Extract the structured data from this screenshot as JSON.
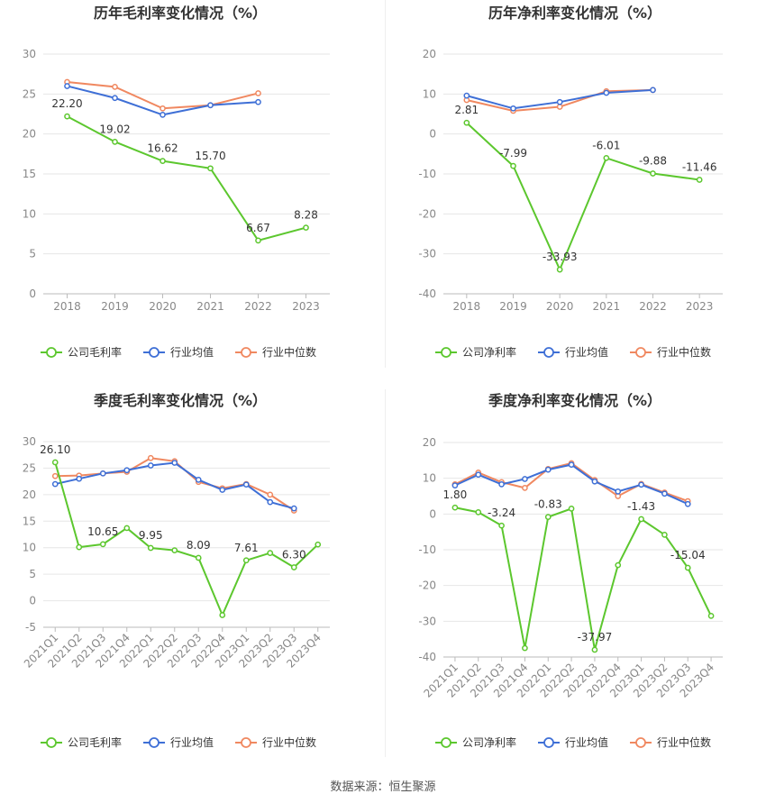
{
  "source_text": "数据来源：恒生聚源",
  "colors": {
    "company": "#5cc72e",
    "avg": "#3e6fd6",
    "median": "#f08860",
    "grid": "#e6e6e6",
    "axis": "#999999",
    "title": "#333333",
    "tick": "#888888"
  },
  "chart_data": [
    {
      "type": "line",
      "title": "历年毛利率变化情况（%）",
      "categories": [
        "2018",
        "2019",
        "2020",
        "2021",
        "2022",
        "2023"
      ],
      "ylim": [
        0,
        30
      ],
      "yticks": [
        0,
        5,
        10,
        15,
        20,
        25,
        30
      ],
      "grid": true,
      "legend_position": "bottom",
      "series": [
        {
          "name": "公司毛利率",
          "key": "company",
          "values": [
            22.2,
            19.02,
            16.62,
            15.7,
            6.67,
            8.28
          ],
          "labels": [
            "22.20",
            "19.02",
            "16.62",
            "15.70",
            "6.67",
            "8.28"
          ]
        },
        {
          "name": "行业均值",
          "key": "avg",
          "values": [
            26.0,
            24.5,
            22.4,
            23.6,
            24.0,
            null
          ]
        },
        {
          "name": "行业中位数",
          "key": "median",
          "values": [
            26.5,
            25.9,
            23.2,
            23.6,
            25.1,
            null
          ]
        }
      ]
    },
    {
      "type": "line",
      "title": "历年净利率变化情况（%）",
      "categories": [
        "2018",
        "2019",
        "2020",
        "2021",
        "2022",
        "2023"
      ],
      "ylim": [
        -40,
        20
      ],
      "yticks": [
        -40,
        -30,
        -20,
        -10,
        0,
        10,
        20
      ],
      "grid": true,
      "legend_position": "bottom",
      "series": [
        {
          "name": "公司净利率",
          "key": "company",
          "values": [
            2.81,
            -7.99,
            -33.93,
            -6.01,
            -9.88,
            -11.46
          ],
          "labels": [
            "2.81",
            "-7.99",
            "-33.93",
            "-6.01",
            "-9.88",
            "-11.46"
          ]
        },
        {
          "name": "行业均值",
          "key": "avg",
          "values": [
            9.6,
            6.4,
            8.0,
            10.3,
            11.0,
            null
          ]
        },
        {
          "name": "行业中位数",
          "key": "median",
          "values": [
            8.5,
            5.8,
            6.8,
            10.7,
            11.0,
            null
          ]
        }
      ]
    },
    {
      "type": "line",
      "title": "季度毛利率变化情况（%）",
      "categories": [
        "2021Q1",
        "2021Q2",
        "2021Q3",
        "2021Q4",
        "2022Q1",
        "2022Q2",
        "2022Q3",
        "2022Q4",
        "2023Q1",
        "2023Q2",
        "2023Q3",
        "2023Q4"
      ],
      "ylim": [
        -5,
        30
      ],
      "yticks": [
        -5,
        0,
        5,
        10,
        15,
        20,
        25,
        30
      ],
      "grid": true,
      "legend_position": "bottom",
      "series": [
        {
          "name": "公司毛利率",
          "key": "company",
          "values": [
            26.1,
            10.1,
            10.65,
            13.7,
            9.95,
            9.5,
            8.09,
            -2.7,
            7.61,
            9.0,
            6.3,
            10.6
          ],
          "labels": [
            "26.10",
            "",
            "10.65",
            "",
            "9.95",
            "",
            "8.09",
            "",
            "7.61",
            "",
            "6.30",
            ""
          ]
        },
        {
          "name": "行业均值",
          "key": "avg",
          "values": [
            22.0,
            23.0,
            24.0,
            24.6,
            25.5,
            26.0,
            22.8,
            20.9,
            21.9,
            18.6,
            17.4,
            null
          ]
        },
        {
          "name": "行业中位数",
          "key": "median",
          "values": [
            23.5,
            23.6,
            24.0,
            24.3,
            26.9,
            26.3,
            22.4,
            21.2,
            22.0,
            20.0,
            17.0,
            null
          ]
        }
      ]
    },
    {
      "type": "line",
      "title": "季度净利率变化情况（%）",
      "categories": [
        "2021Q1",
        "2021Q2",
        "2021Q3",
        "2021Q4",
        "2022Q1",
        "2022Q2",
        "2022Q3",
        "2022Q4",
        "2023Q1",
        "2023Q2",
        "2023Q3",
        "2023Q4"
      ],
      "ylim": [
        -40,
        20
      ],
      "yticks": [
        -40,
        -30,
        -20,
        -10,
        0,
        10,
        20
      ],
      "grid": true,
      "legend_position": "bottom",
      "series": [
        {
          "name": "公司净利率",
          "key": "company",
          "values": [
            1.8,
            0.5,
            -3.24,
            -37.5,
            -0.83,
            1.5,
            -37.97,
            -14.3,
            -1.43,
            -5.8,
            -15.04,
            -28.5
          ],
          "labels": [
            "1.80",
            "",
            "-3.24",
            "",
            "-0.83",
            "",
            "-37.97",
            "",
            "-1.43",
            "",
            "-15.04",
            ""
          ]
        },
        {
          "name": "行业均值",
          "key": "avg",
          "values": [
            8.0,
            11.0,
            8.3,
            9.8,
            12.4,
            13.8,
            9.1,
            6.3,
            8.2,
            5.7,
            2.8,
            null
          ]
        },
        {
          "name": "行业中位数",
          "key": "median",
          "values": [
            8.3,
            11.6,
            8.9,
            7.3,
            12.6,
            14.2,
            9.5,
            5.0,
            8.4,
            6.0,
            3.6,
            null
          ]
        }
      ]
    }
  ]
}
